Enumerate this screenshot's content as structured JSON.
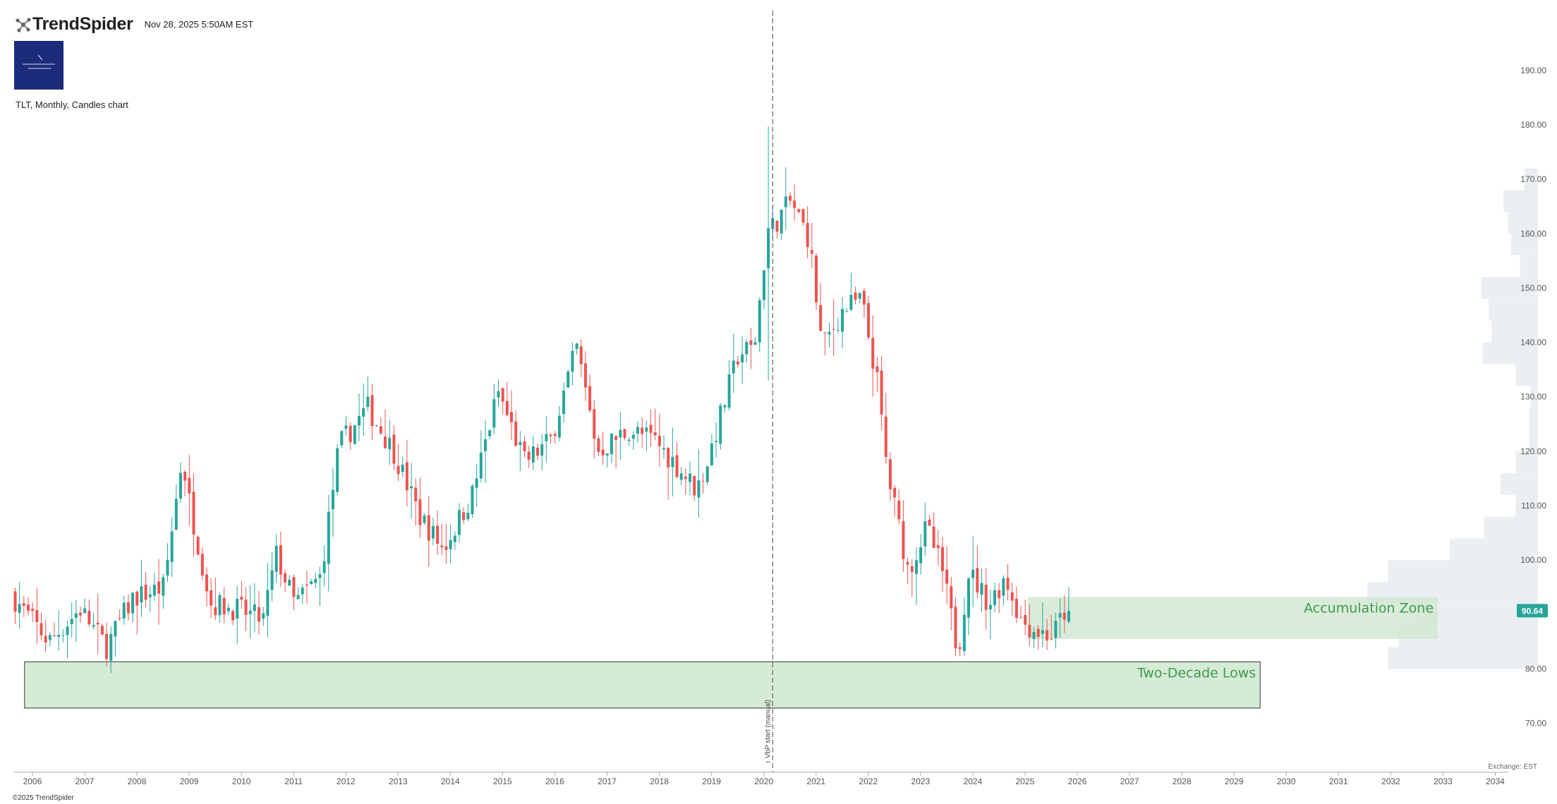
{
  "header": {
    "brand": "TrendSpider",
    "timestamp": "Nov 28, 2025 5:50AM EST",
    "chart_title": "TLT, Monthly, Candles chart"
  },
  "footer": {
    "copyright": "©2025 TrendSpider",
    "exchange": "Exchange: EST"
  },
  "icons": {
    "brand_logo": "node-network-icon",
    "channel_logo": "channel-logo-icon"
  },
  "colors": {
    "up": "#26a69a",
    "down": "#ef5350",
    "zone_fill": "#cfe7cf",
    "zone_text": "#3f9a4e",
    "price_badge": "#26a69a",
    "vbp": "#eceff1",
    "axis_text": "#555555"
  },
  "chart_data": {
    "type": "candlestick",
    "symbol": "TLT",
    "timeframe": "Monthly",
    "ylim": [
      61,
      201
    ],
    "xlim": [
      2005.65,
      2034.25
    ],
    "y_ticks": [
      70,
      80,
      90,
      100,
      110,
      120,
      130,
      140,
      150,
      160,
      170,
      180,
      190
    ],
    "x_ticks": [
      2006,
      2007,
      2008,
      2009,
      2010,
      2011,
      2012,
      2013,
      2014,
      2015,
      2016,
      2017,
      2018,
      2019,
      2020,
      2021,
      2022,
      2023,
      2024,
      2025,
      2026,
      2027,
      2028,
      2029,
      2030,
      2031,
      2032,
      2033,
      2034
    ],
    "last_price": 90.64,
    "last_price_label": "90.64",
    "anchor_path": [
      [
        2005.65,
        94
      ],
      [
        2006.4,
        85
      ],
      [
        2007.0,
        91
      ],
      [
        2007.5,
        84
      ],
      [
        2008.0,
        93
      ],
      [
        2008.6,
        95
      ],
      [
        2008.95,
        119
      ],
      [
        2009.1,
        110
      ],
      [
        2009.5,
        92
      ],
      [
        2010.0,
        91
      ],
      [
        2010.5,
        89
      ],
      [
        2010.75,
        101
      ],
      [
        2011.1,
        92
      ],
      [
        2011.6,
        97
      ],
      [
        2011.95,
        121
      ],
      [
        2012.5,
        128
      ],
      [
        2013.0,
        120
      ],
      [
        2013.5,
        108
      ],
      [
        2013.95,
        102
      ],
      [
        2014.5,
        112
      ],
      [
        2015.0,
        131
      ],
      [
        2015.5,
        118
      ],
      [
        2016.0,
        122
      ],
      [
        2016.5,
        139
      ],
      [
        2016.9,
        120
      ],
      [
        2017.5,
        124
      ],
      [
        2018.0,
        122
      ],
      [
        2018.8,
        113
      ],
      [
        2019.0,
        118
      ],
      [
        2019.6,
        138
      ],
      [
        2019.9,
        139
      ],
      [
        2020.15,
        160
      ],
      [
        2020.6,
        166
      ],
      [
        2020.95,
        159
      ],
      [
        2021.2,
        139
      ],
      [
        2021.6,
        146
      ],
      [
        2021.95,
        148
      ],
      [
        2022.25,
        133
      ],
      [
        2022.45,
        116
      ],
      [
        2022.85,
        98
      ],
      [
        2023.2,
        106
      ],
      [
        2023.5,
        98
      ],
      [
        2023.8,
        83
      ],
      [
        2024.0,
        98
      ],
      [
        2024.4,
        92
      ],
      [
        2024.7,
        97
      ],
      [
        2025.0,
        89
      ],
      [
        2025.3,
        87
      ],
      [
        2025.6,
        86
      ],
      [
        2025.85,
        90.64
      ]
    ],
    "overlays": {
      "vbp_line": {
        "x": 2020.17,
        "label": "↕ VbP start (manual)"
      },
      "zones": [
        {
          "label": "Two-Decade Lows",
          "x0": 2005.85,
          "x1": 2029.5,
          "y0": 72.8,
          "y1": 81.3
        },
        {
          "label": "Accumulation Zone",
          "x0": 2025.05,
          "x1": 2032.9,
          "y0": 85.5,
          "y1": 93.2
        }
      ],
      "volume_profile": [
        {
          "price_low": 80,
          "price_high": 84,
          "volume": 100
        },
        {
          "price_low": 84,
          "price_high": 88,
          "volume": 93
        },
        {
          "price_low": 88,
          "price_high": 92,
          "volume": 82
        },
        {
          "price_low": 92,
          "price_high": 96,
          "volume": 114
        },
        {
          "price_low": 96,
          "price_high": 100,
          "volume": 100
        },
        {
          "price_low": 100,
          "price_high": 104,
          "volume": 59
        },
        {
          "price_low": 104,
          "price_high": 108,
          "volume": 36
        },
        {
          "price_low": 108,
          "price_high": 112,
          "volume": 15
        },
        {
          "price_low": 112,
          "price_high": 116,
          "volume": 25
        },
        {
          "price_low": 116,
          "price_high": 120,
          "volume": 15
        },
        {
          "price_low": 120,
          "price_high": 124,
          "volume": 6
        },
        {
          "price_low": 124,
          "price_high": 128,
          "volume": 6
        },
        {
          "price_low": 128,
          "price_high": 132,
          "volume": 5
        },
        {
          "price_low": 132,
          "price_high": 136,
          "volume": 15
        },
        {
          "price_low": 136,
          "price_high": 140,
          "volume": 37
        },
        {
          "price_low": 140,
          "price_high": 144,
          "volume": 31
        },
        {
          "price_low": 144,
          "price_high": 148,
          "volume": 33
        },
        {
          "price_low": 148,
          "price_high": 152,
          "volume": 38
        },
        {
          "price_low": 152,
          "price_high": 156,
          "volume": 12
        },
        {
          "price_low": 156,
          "price_high": 160,
          "volume": 18
        },
        {
          "price_low": 160,
          "price_high": 164,
          "volume": 20
        },
        {
          "price_low": 164,
          "price_high": 168,
          "volume": 23
        },
        {
          "price_low": 168,
          "price_high": 172,
          "volume": 9
        }
      ]
    }
  }
}
